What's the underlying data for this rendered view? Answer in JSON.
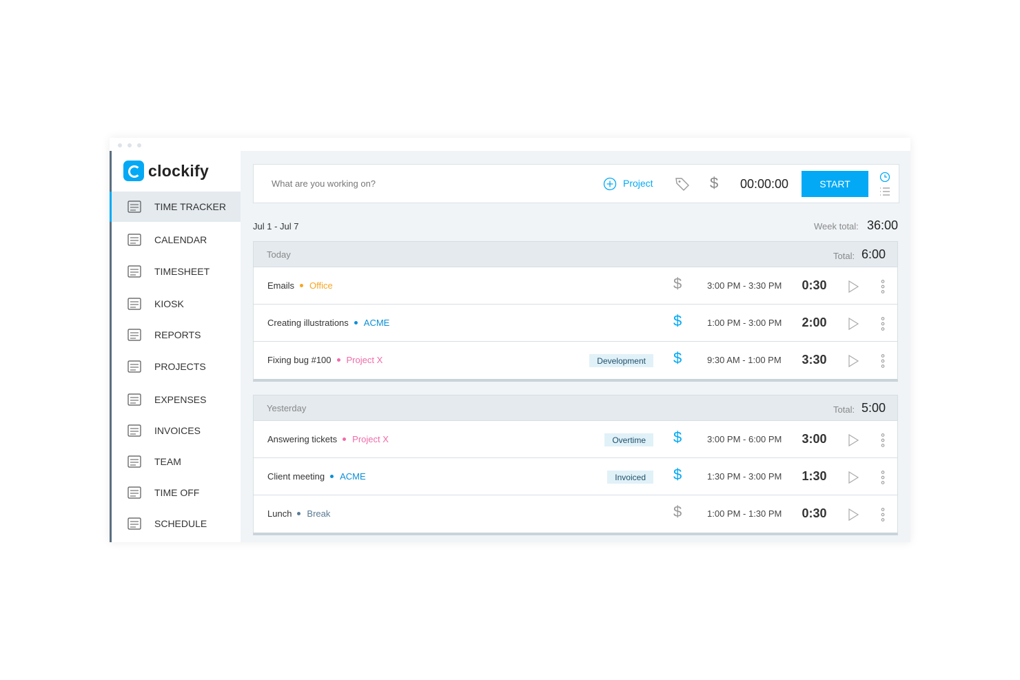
{
  "app": {
    "logo": "clockify"
  },
  "sidebar": {
    "items": [
      "TIME TRACKER",
      "CALENDAR",
      "TIMESHEET",
      "KIOSK",
      "REPORTS",
      "PROJECTS",
      "EXPENSES",
      "INVOICES",
      "TEAM",
      "TIME OFF",
      "SCHEDULE"
    ]
  },
  "timer": {
    "placeholder": "What are you working on?",
    "project": "Project",
    "time": "00:00:00",
    "button": "START"
  },
  "week": {
    "range": "Jul 1 - Jul 7",
    "total_label": "Week total:",
    "total": "36:00"
  },
  "days": [
    {
      "label": "Today",
      "total_label": "Total:",
      "total": "6:00",
      "entries": [
        {
          "description": "Emails",
          "project": "Office",
          "project_color": "#f5a623",
          "billable": false,
          "time_range": "3:00 PM - 3:30 PM",
          "duration": "0:30"
        },
        {
          "description": "Creating illustrations",
          "project": "ACME",
          "project_color": "#0b8fd6",
          "billable": true,
          "time_range": "1:00 PM - 3:00 PM",
          "duration": "2:00"
        },
        {
          "description": "Fixing bug #100",
          "project": "Project X",
          "project_color": "#f06ba8",
          "tag": "Development",
          "billable": true,
          "time_range": "9:30 AM - 1:00 PM",
          "duration": "3:30"
        }
      ]
    },
    {
      "label": "Yesterday",
      "total_label": "Total:",
      "total": "5:00",
      "entries": [
        {
          "description": "Answering tickets",
          "project": "Project X",
          "project_color": "#f06ba8",
          "tag": "Overtime",
          "billable": true,
          "time_range": "3:00 PM - 6:00 PM",
          "duration": "3:00"
        },
        {
          "description": "Client meeting",
          "project": "ACME",
          "project_color": "#0b8fd6",
          "tag": "Invoiced",
          "billable": true,
          "time_range": "1:30 PM - 3:00 PM",
          "duration": "1:30"
        },
        {
          "description": "Lunch",
          "project": "Break",
          "project_color": "#5a7a94",
          "billable": false,
          "time_range": "1:00 PM - 1:30 PM",
          "duration": "0:30"
        }
      ]
    }
  ]
}
